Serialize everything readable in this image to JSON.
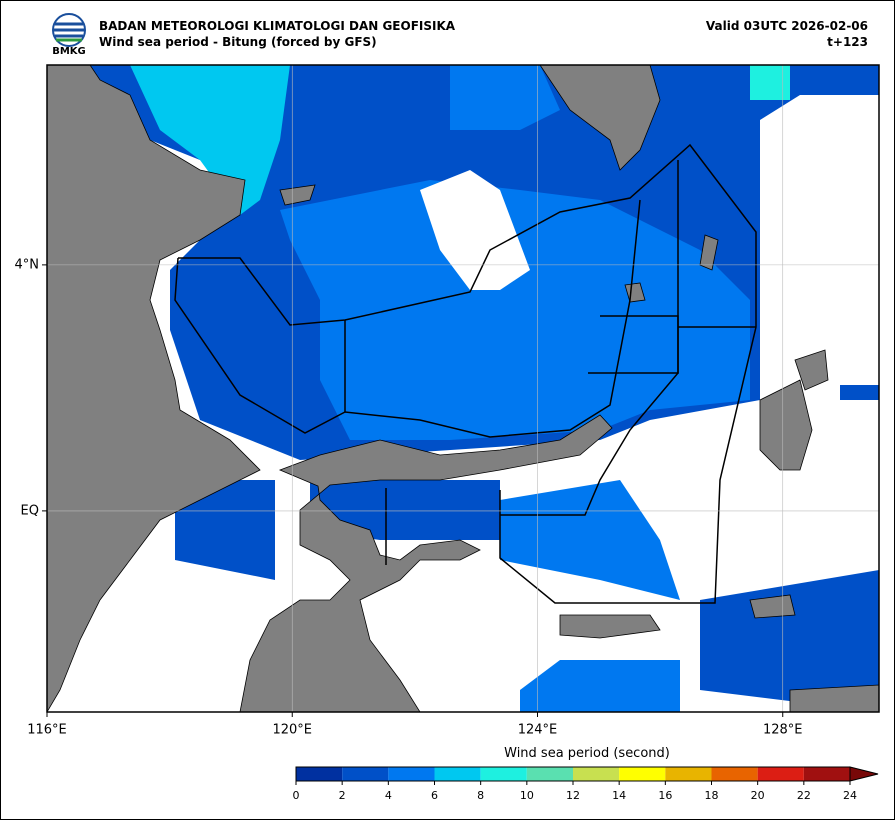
{
  "header": {
    "logo_text": "BMKG",
    "title": "BADAN METEOROLOGI KLIMATOLOGI DAN GEOFISIKA",
    "subtitle": "Wind sea period - Bitung (forced by GFS)",
    "valid": "Valid 03UTC 2026-02-06",
    "lead": "t+123"
  },
  "map": {
    "xlim": [
      116,
      129.57
    ],
    "ylim": [
      -3.27,
      7.25
    ],
    "xticks": [
      {
        "value": 116,
        "label": "116°E"
      },
      {
        "value": 120,
        "label": "120°E"
      },
      {
        "value": 124,
        "label": "124°E"
      },
      {
        "value": 128,
        "label": "128°E"
      }
    ],
    "yticks": [
      {
        "value": 0,
        "label": "EQ"
      },
      {
        "value": 4,
        "label": "4°N"
      }
    ],
    "grid": true
  },
  "colorbar": {
    "label": "Wind sea period (second)",
    "ticks": [
      0,
      2,
      4,
      6,
      8,
      10,
      12,
      14,
      16,
      18,
      20,
      22,
      24
    ],
    "colors": [
      "#0030a0",
      "#0050c8",
      "#0078f0",
      "#00c8f0",
      "#1ef0e0",
      "#5ae0b0",
      "#c8e050",
      "#ffff00",
      "#e8b400",
      "#e86400",
      "#dc1e14",
      "#a01010"
    ],
    "extend": "max",
    "over_color": "#780808"
  }
}
